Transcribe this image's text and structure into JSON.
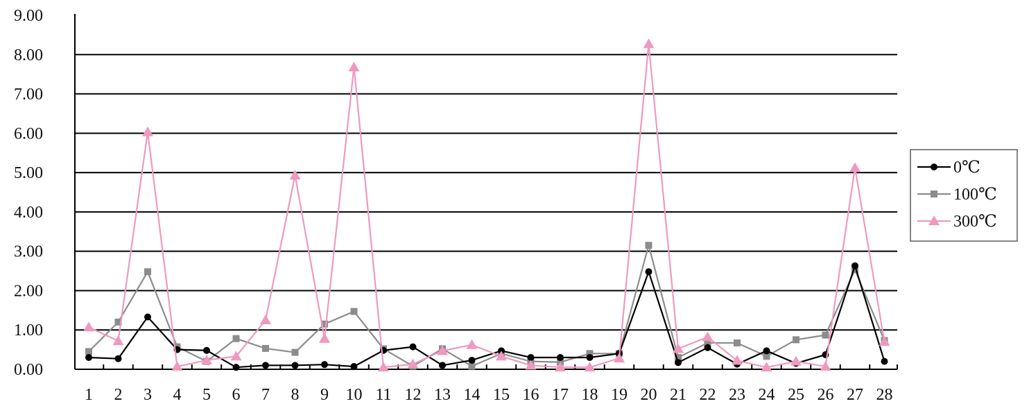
{
  "chart_data": {
    "type": "line",
    "title": "",
    "xlabel": "",
    "ylabel": "",
    "categories": [
      "1",
      "2",
      "3",
      "4",
      "5",
      "6",
      "7",
      "8",
      "9",
      "10",
      "11",
      "12",
      "13",
      "14",
      "15",
      "16",
      "17",
      "18",
      "19",
      "20",
      "21",
      "22",
      "23",
      "24",
      "25",
      "26",
      "27",
      "28"
    ],
    "ylim": [
      0,
      9
    ],
    "y_ticks": [
      "0.00",
      "1.00",
      "2.00",
      "3.00",
      "4.00",
      "5.00",
      "6.00",
      "7.00",
      "8.00",
      "9.00"
    ],
    "grid": true,
    "legend_position": "right",
    "series": [
      {
        "name": "0℃",
        "color": "#000000",
        "marker": "circle",
        "values": [
          0.3,
          0.27,
          1.33,
          0.5,
          0.48,
          0.05,
          0.1,
          0.1,
          0.12,
          0.07,
          0.48,
          0.57,
          0.1,
          0.23,
          0.47,
          0.3,
          0.3,
          0.3,
          0.4,
          2.48,
          0.17,
          0.55,
          0.13,
          0.47,
          0.15,
          0.37,
          2.63,
          0.2
        ]
      },
      {
        "name": "100℃",
        "color": "#8c8c8c",
        "marker": "square",
        "values": [
          0.45,
          1.2,
          2.48,
          0.57,
          0.2,
          0.78,
          0.53,
          0.43,
          1.15,
          1.47,
          0.52,
          0.08,
          0.52,
          0.08,
          0.4,
          0.2,
          0.18,
          0.4,
          0.4,
          3.15,
          0.3,
          0.67,
          0.67,
          0.33,
          0.75,
          0.87,
          2.53,
          0.73
        ]
      },
      {
        "name": "300℃",
        "color": "#ef99c0",
        "marker": "triangle",
        "values": [
          1.07,
          0.72,
          6.03,
          0.07,
          0.23,
          0.33,
          1.25,
          4.93,
          0.78,
          7.68,
          0.05,
          0.13,
          0.47,
          0.62,
          0.33,
          0.1,
          0.05,
          0.05,
          0.28,
          8.27,
          0.52,
          0.82,
          0.22,
          0.05,
          0.2,
          0.07,
          5.12,
          0.7
        ]
      }
    ]
  }
}
